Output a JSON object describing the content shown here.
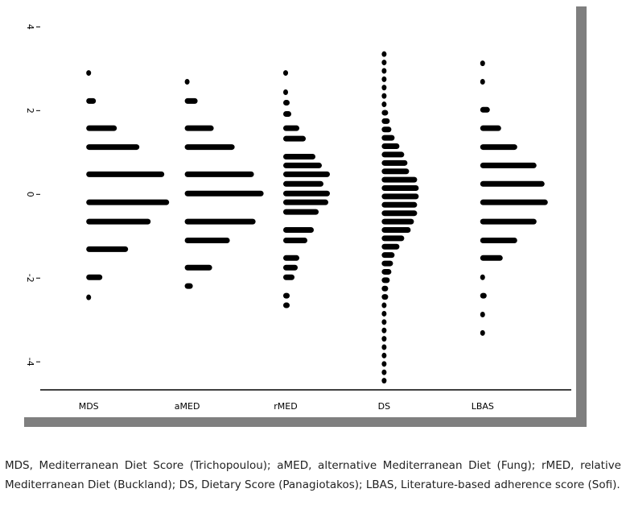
{
  "chart_data": {
    "type": "dotstack",
    "categories": [
      "MDS",
      "aMED",
      "rMED",
      "DS",
      "LBAS"
    ],
    "ylim": [
      -4.65,
      4.45
    ],
    "yticks": [
      -4,
      -2,
      0,
      2,
      4
    ],
    "color": "#000000",
    "series": [
      {
        "levels": [
          2.9,
          2.23,
          1.58,
          1.13,
          0.48,
          -0.19,
          -0.65,
          -1.31,
          -1.98,
          -2.46
        ],
        "counts": [
          6,
          12,
          38,
          66,
          97,
          103,
          80,
          52,
          20,
          6
        ]
      },
      {
        "levels": [
          2.69,
          2.23,
          1.58,
          1.13,
          0.48,
          0.02,
          -0.65,
          -1.1,
          -1.75,
          -2.19
        ],
        "counts": [
          6,
          16,
          36,
          62,
          86,
          98,
          88,
          56,
          34,
          10
        ]
      },
      {
        "levels": [
          2.9,
          2.44,
          2.19,
          1.92,
          1.58,
          1.33,
          0.9,
          0.69,
          0.48,
          0.25,
          0.02,
          -0.19,
          -0.42,
          -0.85,
          -1.1,
          -1.52,
          -1.75,
          -1.98,
          -2.42,
          -2.65
        ],
        "counts": [
          6,
          6,
          8,
          10,
          20,
          28,
          40,
          48,
          58,
          50,
          58,
          56,
          44,
          38,
          30,
          20,
          18,
          14,
          8,
          8
        ]
      },
      {
        "levels": [
          3.35,
          3.15,
          2.95,
          2.75,
          2.55,
          2.35,
          2.15,
          1.95,
          1.75,
          1.55,
          1.35,
          1.15,
          0.95,
          0.75,
          0.55,
          0.35,
          0.15,
          -0.05,
          -0.25,
          -0.45,
          -0.65,
          -0.85,
          -1.05,
          -1.25,
          -1.45,
          -1.65,
          -1.85,
          -2.05,
          -2.25,
          -2.45,
          -2.65,
          -2.85,
          -3.05,
          -3.25,
          -3.45,
          -3.65,
          -3.85,
          -4.05,
          -4.25,
          -4.45
        ],
        "counts": [
          6,
          6,
          6,
          6,
          6,
          6,
          6,
          8,
          10,
          12,
          16,
          22,
          28,
          32,
          34,
          44,
          46,
          46,
          44,
          44,
          40,
          36,
          28,
          22,
          16,
          14,
          12,
          10,
          8,
          8,
          6,
          6,
          6,
          6,
          6,
          6,
          6,
          6,
          6,
          6
        ]
      },
      {
        "levels": [
          3.13,
          2.69,
          2.02,
          1.58,
          1.13,
          0.69,
          0.25,
          -0.19,
          -0.65,
          -1.1,
          -1.52,
          -1.98,
          -2.42,
          -2.87,
          -3.31
        ],
        "counts": [
          6,
          6,
          12,
          26,
          46,
          70,
          80,
          84,
          70,
          46,
          28,
          6,
          8,
          6,
          6
        ]
      }
    ],
    "caption": "MDS, Mediterranean Diet Score (Trichopoulou); aMED, alternative Mediterranean Diet (Fung); rMED, relative Mediterranean Diet (Buckland); DS, Dietary Score (Panagiotakos); LBAS, Literature-based adherence score (Sofi)."
  }
}
